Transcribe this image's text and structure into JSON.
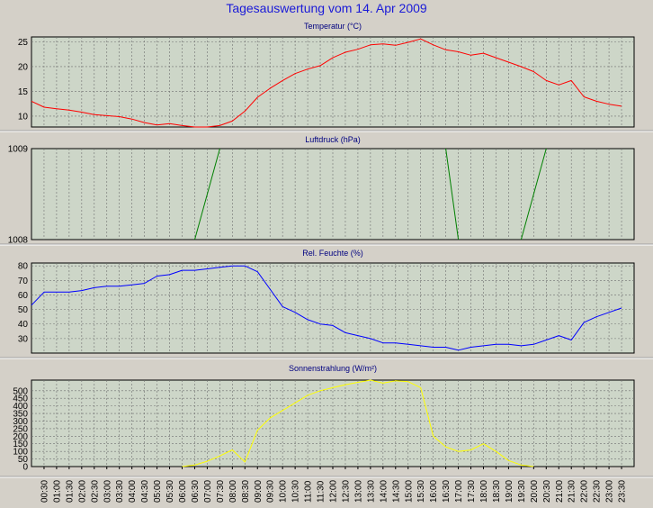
{
  "page_title": "Tagesauswertung vom 14. Apr 2009",
  "colors": {
    "background": "#d4d0c8",
    "plot_background": "#cdd6c8",
    "title": "#1a1ad8",
    "grid": "#707070"
  },
  "chart_data": [
    {
      "type": "line",
      "title": "Temperatur (°C)",
      "ylim": [
        7.8,
        26
      ],
      "yticks": [
        10,
        15,
        20,
        25
      ],
      "grid": true,
      "color": "#ff0000",
      "x": [
        "00:00",
        "00:30",
        "01:00",
        "01:30",
        "02:00",
        "02:30",
        "03:00",
        "03:30",
        "04:00",
        "04:30",
        "05:00",
        "05:30",
        "06:00",
        "06:30",
        "07:00",
        "07:30",
        "08:00",
        "08:30",
        "09:00",
        "09:30",
        "10:00",
        "10:30",
        "11:00",
        "11:30",
        "12:00",
        "12:30",
        "13:00",
        "13:30",
        "14:00",
        "14:30",
        "15:00",
        "15:30",
        "16:00",
        "16:30",
        "17:00",
        "17:30",
        "18:00",
        "18:30",
        "19:00",
        "19:30",
        "20:00",
        "20:30",
        "21:00",
        "21:30",
        "22:00",
        "22:30",
        "23:00",
        "23:30"
      ],
      "values": [
        13.0,
        11.8,
        11.5,
        11.2,
        10.8,
        10.3,
        10.1,
        9.9,
        9.4,
        8.7,
        8.2,
        8.5,
        8.1,
        7.8,
        7.8,
        8.1,
        9.0,
        11.0,
        13.8,
        15.6,
        17.2,
        18.6,
        19.5,
        20.2,
        21.8,
        22.9,
        23.5,
        24.4,
        24.6,
        24.3,
        24.9,
        25.6,
        24.4,
        23.4,
        23.0,
        22.3,
        22.7,
        21.8,
        20.9,
        20.0,
        19.0,
        17.2,
        16.3,
        17.2,
        13.9,
        13.0,
        12.4,
        12.0
      ]
    },
    {
      "type": "line",
      "title": "Luftdruck (hPa)",
      "ylim": [
        1008,
        1009
      ],
      "yticks": [
        1008,
        1009
      ],
      "grid": true,
      "color": "#008000",
      "segments": [
        {
          "x": [
            "06:30",
            "07:30"
          ],
          "values": [
            1008,
            1009
          ]
        },
        {
          "x": [
            "16:30",
            "17:00"
          ],
          "values": [
            1009,
            1008
          ]
        },
        {
          "x": [
            "19:30",
            "20:30"
          ],
          "values": [
            1008,
            1009
          ]
        }
      ]
    },
    {
      "type": "line",
      "title": "Rel. Feuchte (%)",
      "ylim": [
        20,
        82
      ],
      "yticks": [
        30,
        40,
        50,
        60,
        70,
        80
      ],
      "grid": true,
      "color": "#0000ff",
      "x": [
        "00:00",
        "00:30",
        "01:00",
        "01:30",
        "02:00",
        "02:30",
        "03:00",
        "03:30",
        "04:00",
        "04:30",
        "05:00",
        "05:30",
        "06:00",
        "06:30",
        "07:00",
        "07:30",
        "08:00",
        "08:30",
        "09:00",
        "09:30",
        "10:00",
        "10:30",
        "11:00",
        "11:30",
        "12:00",
        "12:30",
        "13:00",
        "13:30",
        "14:00",
        "14:30",
        "15:00",
        "15:30",
        "16:00",
        "16:30",
        "17:00",
        "17:30",
        "18:00",
        "18:30",
        "19:00",
        "19:30",
        "20:00",
        "20:30",
        "21:00",
        "21:30",
        "22:00",
        "22:30",
        "23:00",
        "23:30"
      ],
      "values": [
        53,
        62,
        62,
        62,
        63,
        65,
        66,
        66,
        67,
        68,
        73,
        74,
        77,
        77,
        78,
        79,
        80,
        80,
        76,
        64,
        52,
        48,
        43,
        40,
        39,
        34,
        32,
        30,
        27,
        27,
        26,
        25,
        24,
        24,
        22,
        24,
        25,
        26,
        26,
        25,
        26,
        29,
        32,
        29,
        41,
        45,
        48,
        51
      ]
    },
    {
      "type": "line",
      "title": "Sonnenstrahlung (W/m²)",
      "ylim": [
        0,
        570
      ],
      "yticks": [
        0,
        50,
        100,
        150,
        200,
        250,
        300,
        350,
        400,
        450,
        500
      ],
      "grid": true,
      "color": "#ffff00",
      "x": [
        "06:00",
        "06:30",
        "07:00",
        "07:30",
        "08:00",
        "08:30",
        "09:00",
        "09:30",
        "10:00",
        "10:30",
        "11:00",
        "11:30",
        "12:00",
        "12:30",
        "13:00",
        "13:30",
        "14:00",
        "14:30",
        "15:00",
        "15:30",
        "16:00",
        "16:30",
        "17:00",
        "17:30",
        "18:00",
        "18:30",
        "19:00",
        "19:30",
        "20:00"
      ],
      "values": [
        0,
        10,
        35,
        70,
        110,
        30,
        240,
        320,
        370,
        420,
        470,
        500,
        520,
        540,
        555,
        570,
        550,
        565,
        560,
        520,
        200,
        130,
        100,
        110,
        150,
        100,
        40,
        10,
        0
      ]
    }
  ],
  "x_axis": {
    "tick_labels": [
      "00:30",
      "01:00",
      "01:30",
      "02:00",
      "02:30",
      "03:00",
      "03:30",
      "04:00",
      "04:30",
      "05:00",
      "05:30",
      "06:00",
      "06:30",
      "07:00",
      "07:30",
      "08:00",
      "08:30",
      "09:00",
      "09:30",
      "10:00",
      "10:30",
      "11:00",
      "11:30",
      "12:00",
      "12:30",
      "13:00",
      "13:30",
      "14:00",
      "14:30",
      "15:00",
      "15:30",
      "16:00",
      "16:30",
      "17:00",
      "17:30",
      "18:00",
      "18:30",
      "19:00",
      "19:30",
      "20:00",
      "20:30",
      "21:00",
      "21:30",
      "22:00",
      "22:30",
      "23:00",
      "23:30"
    ]
  }
}
